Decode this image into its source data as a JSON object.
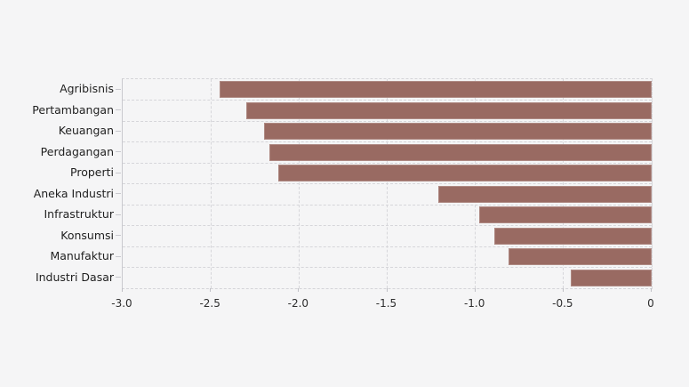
{
  "page": {
    "background_color": "#f5f5f6",
    "title": ""
  },
  "chart_data": {
    "type": "bar",
    "orientation": "horizontal",
    "title": "",
    "xlabel": "",
    "ylabel": "",
    "categories": [
      "Agribisnis",
      "Pertambangan",
      "Keuangan",
      "Perdagangan",
      "Properti",
      "Aneka Industri",
      "Infrastruktur",
      "Konsumsi",
      "Manufaktur",
      "Industri Dasar"
    ],
    "values": [
      -2.45,
      -2.3,
      -2.2,
      -2.17,
      -2.12,
      -1.21,
      -0.98,
      -0.89,
      -0.81,
      -0.46
    ],
    "xlim": [
      -3.0,
      0
    ],
    "x_tick_values": [
      -3.0,
      -2.5,
      -2.0,
      -1.5,
      -1.0,
      -0.5,
      0
    ],
    "x_tick_labels": [
      "-3.0",
      "-2.5",
      "-2.0",
      "-1.5",
      "-1.0",
      "-0.5",
      "0"
    ],
    "bar_color": "#996a62",
    "grid": "dashed",
    "grid_color": "#d6d6da",
    "legend_position": "none",
    "text_color": "#1f1f1f"
  }
}
